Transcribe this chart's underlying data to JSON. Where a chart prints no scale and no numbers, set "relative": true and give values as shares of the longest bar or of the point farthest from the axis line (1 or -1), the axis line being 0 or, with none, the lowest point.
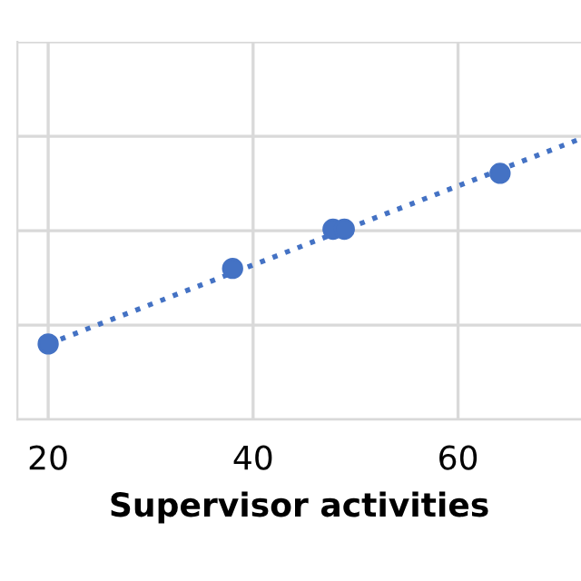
{
  "chart_data": {
    "type": "scatter",
    "xlabel": "Supervisor activities",
    "relative": true,
    "xlim": [
      17,
      72
    ],
    "xticks": [
      20,
      40,
      60
    ],
    "grid": true,
    "marker": "circle",
    "series": [
      {
        "color": "#4472c4",
        "x": [
          20.0,
          38.0,
          47.8,
          48.9,
          64.1
        ],
        "values": [
          0.27,
          0.54,
          0.68,
          0.68,
          0.88
        ]
      },
      {
        "type": "line",
        "color": "#4472c4",
        "line_style": "dotted",
        "marker": "none",
        "x": [
          20.0,
          71.7
        ],
        "values": [
          0.27,
          1.0
        ]
      }
    ]
  }
}
